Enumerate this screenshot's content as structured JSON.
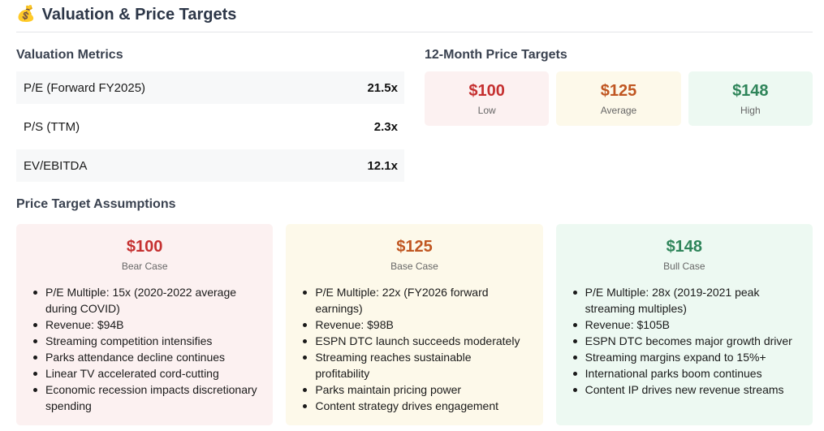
{
  "header": {
    "icon": "money-bag-icon",
    "title": "Valuation & Price Targets"
  },
  "valuation": {
    "title": "Valuation Metrics",
    "rows": [
      {
        "label": "P/E (Forward FY2025)",
        "value": "21.5x"
      },
      {
        "label": "P/S (TTM)",
        "value": "2.3x"
      },
      {
        "label": "EV/EBITDA",
        "value": "12.1x"
      }
    ]
  },
  "targets": {
    "title": "12-Month Price Targets",
    "items": [
      {
        "price": "$100",
        "label": "Low",
        "color": "#c53030"
      },
      {
        "price": "$125",
        "label": "Average",
        "color": "#c05621"
      },
      {
        "price": "$148",
        "label": "High",
        "color": "#2f855a"
      }
    ]
  },
  "assumptions": {
    "title": "Price Target Assumptions",
    "cards": [
      {
        "price": "$100",
        "label": "Bear Case",
        "items": [
          "P/E Multiple: 15x (2020-2022 average during COVID)",
          "Revenue: $94B",
          "Streaming competition intensifies",
          "Parks attendance decline continues",
          "Linear TV accelerated cord-cutting",
          "Economic recession impacts discretionary spending"
        ]
      },
      {
        "price": "$125",
        "label": "Base Case",
        "items": [
          "P/E Multiple: 22x (FY2026 forward earnings)",
          "Revenue: $98B",
          "ESPN DTC launch succeeds moderately",
          "Streaming reaches sustainable profitability",
          "Parks maintain pricing power",
          "Content strategy drives engagement"
        ]
      },
      {
        "price": "$148",
        "label": "Bull Case",
        "items": [
          "P/E Multiple: 28x (2019-2021 peak streaming multiples)",
          "Revenue: $105B",
          "ESPN DTC becomes major growth driver",
          "Streaming margins expand to 15%+",
          "International parks boom continues",
          "Content IP drives new revenue streams"
        ]
      }
    ]
  }
}
